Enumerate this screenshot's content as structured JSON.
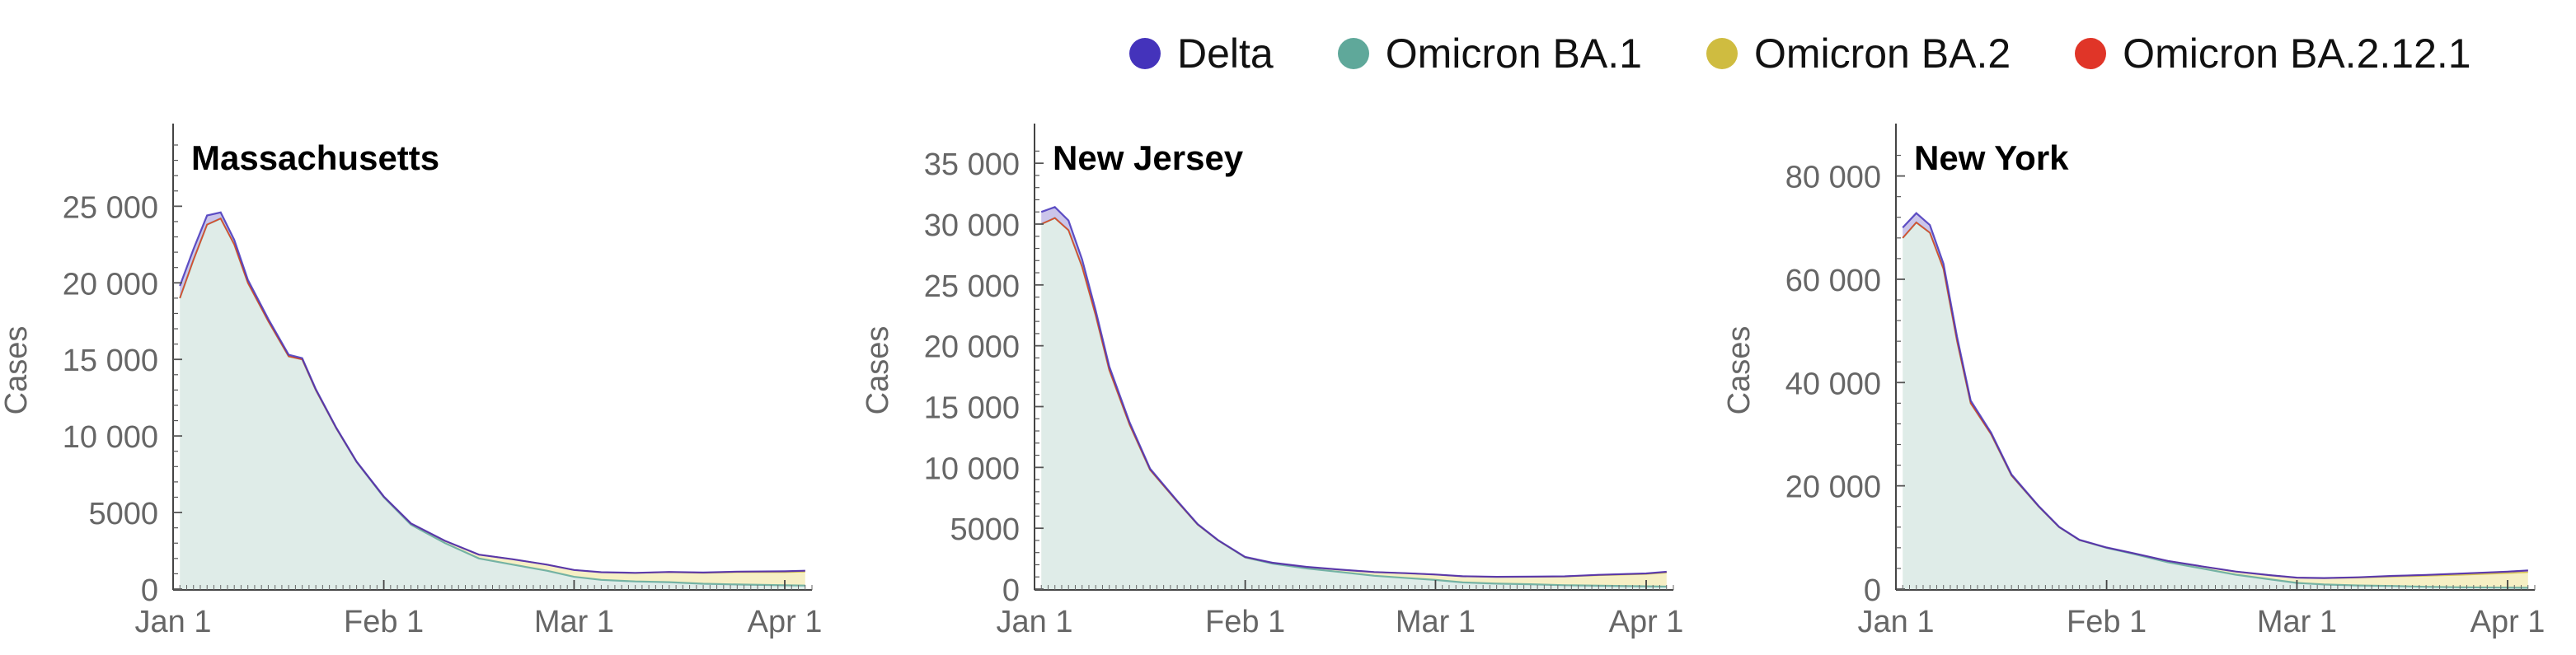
{
  "legend": {
    "items": [
      {
        "label": "Delta",
        "color": "#4433bb"
      },
      {
        "label": "Omicron BA.1",
        "color": "#5fa89a"
      },
      {
        "label": "Omicron BA.2",
        "color": "#cfbc40"
      },
      {
        "label": "Omicron BA.2.12.1",
        "color": "#e03528"
      }
    ]
  },
  "chart_data": [
    {
      "type": "area",
      "title": "Massachusetts",
      "ylabel": "Cases",
      "xlabel": "",
      "ylim": [
        0,
        29000
      ],
      "yticks": [
        0,
        5000,
        10000,
        15000,
        20000,
        25000
      ],
      "ytick_labels": [
        "0",
        "5000",
        "10 000",
        "15 000",
        "20 000",
        "25 000"
      ],
      "xlim": [
        "2022-01-01",
        "2022-04-05"
      ],
      "xticks": [
        "2022-01-01",
        "2022-02-01",
        "2022-03-01",
        "2022-04-01"
      ],
      "xtick_labels": [
        "Jan 1",
        "Feb 1",
        "Mar 1",
        "Apr 1"
      ],
      "stacked": true,
      "x": [
        "2022-01-02",
        "2022-01-04",
        "2022-01-06",
        "2022-01-08",
        "2022-01-10",
        "2022-01-12",
        "2022-01-15",
        "2022-01-18",
        "2022-01-20",
        "2022-01-22",
        "2022-01-25",
        "2022-01-28",
        "2022-02-01",
        "2022-02-05",
        "2022-02-10",
        "2022-02-15",
        "2022-02-20",
        "2022-02-25",
        "2022-03-01",
        "2022-03-05",
        "2022-03-10",
        "2022-03-15",
        "2022-03-20",
        "2022-03-25",
        "2022-04-01",
        "2022-04-04"
      ],
      "series": [
        {
          "name": "Omicron BA.1",
          "values": [
            19000,
            21500,
            23800,
            24200,
            22500,
            20000,
            17500,
            15200,
            15000,
            13000,
            10500,
            8300,
            6000,
            4200,
            3000,
            2000,
            1600,
            1200,
            800,
            600,
            500,
            450,
            350,
            300,
            250,
            230
          ]
        },
        {
          "name": "Omicron BA.2",
          "values": [
            0,
            0,
            0,
            0,
            0,
            0,
            0,
            0,
            0,
            0,
            0,
            0,
            30,
            80,
            150,
            250,
            350,
            400,
            450,
            500,
            550,
            650,
            700,
            800,
            850,
            900
          ]
        },
        {
          "name": "Omicron BA.2.12.1",
          "values": [
            0,
            0,
            0,
            0,
            0,
            0,
            0,
            0,
            0,
            0,
            0,
            0,
            0,
            0,
            0,
            0,
            0,
            0,
            0,
            5,
            10,
            20,
            30,
            40,
            60,
            70
          ]
        },
        {
          "name": "Delta",
          "values": [
            800,
            700,
            600,
            400,
            300,
            200,
            150,
            100,
            80,
            60,
            40,
            30,
            20,
            10,
            5,
            0,
            0,
            0,
            0,
            0,
            0,
            0,
            0,
            0,
            0,
            0
          ]
        }
      ]
    },
    {
      "type": "area",
      "title": "New Jersey",
      "ylabel": "Cases",
      "xlabel": "",
      "ylim": [
        0,
        36500
      ],
      "yticks": [
        0,
        5000,
        10000,
        15000,
        20000,
        25000,
        30000,
        35000
      ],
      "ytick_labels": [
        "0",
        "5000",
        "10 000",
        "15 000",
        "20 000",
        "25 000",
        "30 000",
        "35 000"
      ],
      "xlim": [
        "2022-01-01",
        "2022-04-05"
      ],
      "xticks": [
        "2022-01-01",
        "2022-02-01",
        "2022-03-01",
        "2022-04-01"
      ],
      "xtick_labels": [
        "Jan 1",
        "Feb 1",
        "Mar 1",
        "Apr 1"
      ],
      "stacked": true,
      "x": [
        "2022-01-02",
        "2022-01-04",
        "2022-01-06",
        "2022-01-08",
        "2022-01-10",
        "2022-01-12",
        "2022-01-15",
        "2022-01-18",
        "2022-01-20",
        "2022-01-22",
        "2022-01-25",
        "2022-01-28",
        "2022-02-01",
        "2022-02-05",
        "2022-02-10",
        "2022-02-15",
        "2022-02-20",
        "2022-02-25",
        "2022-03-01",
        "2022-03-05",
        "2022-03-10",
        "2022-03-15",
        "2022-03-20",
        "2022-03-25",
        "2022-04-01",
        "2022-04-04"
      ],
      "series": [
        {
          "name": "Omicron BA.1",
          "values": [
            30000,
            30500,
            29500,
            26500,
            22500,
            18000,
            13500,
            9800,
            8500,
            7200,
            5300,
            4000,
            2600,
            2100,
            1700,
            1400,
            1100,
            900,
            750,
            550,
            450,
            400,
            320,
            280,
            230,
            200
          ]
        },
        {
          "name": "Omicron BA.2",
          "values": [
            0,
            0,
            0,
            0,
            0,
            0,
            0,
            0,
            0,
            0,
            0,
            0,
            20,
            60,
            120,
            200,
            300,
            400,
            450,
            500,
            550,
            600,
            700,
            850,
            1000,
            1150
          ]
        },
        {
          "name": "Omicron BA.2.12.1",
          "values": [
            0,
            0,
            0,
            0,
            0,
            0,
            0,
            0,
            0,
            0,
            0,
            0,
            0,
            0,
            0,
            0,
            0,
            0,
            0,
            5,
            10,
            20,
            30,
            40,
            60,
            70
          ]
        },
        {
          "name": "Delta",
          "values": [
            1000,
            900,
            800,
            600,
            400,
            300,
            200,
            100,
            80,
            60,
            40,
            30,
            20,
            10,
            5,
            0,
            0,
            0,
            0,
            0,
            0,
            0,
            0,
            0,
            0,
            0
          ]
        }
      ]
    },
    {
      "type": "area",
      "title": "New York",
      "ylabel": "Cases",
      "xlabel": "",
      "ylim": [
        0,
        86000
      ],
      "yticks": [
        0,
        20000,
        40000,
        60000,
        80000
      ],
      "ytick_labels": [
        "0",
        "20 000",
        "40 000",
        "60 000",
        "80 000"
      ],
      "xlim": [
        "2022-01-01",
        "2022-04-05"
      ],
      "xticks": [
        "2022-01-01",
        "2022-02-01",
        "2022-03-01",
        "2022-04-01"
      ],
      "xtick_labels": [
        "Jan 1",
        "Feb 1",
        "Mar 1",
        "Apr 1"
      ],
      "stacked": true,
      "x": [
        "2022-01-02",
        "2022-01-04",
        "2022-01-06",
        "2022-01-08",
        "2022-01-10",
        "2022-01-12",
        "2022-01-15",
        "2022-01-18",
        "2022-01-20",
        "2022-01-22",
        "2022-01-25",
        "2022-01-28",
        "2022-02-01",
        "2022-02-05",
        "2022-02-10",
        "2022-02-15",
        "2022-02-20",
        "2022-02-25",
        "2022-03-01",
        "2022-03-05",
        "2022-03-10",
        "2022-03-15",
        "2022-03-20",
        "2022-03-25",
        "2022-04-01",
        "2022-04-04"
      ],
      "series": [
        {
          "name": "Omicron BA.1",
          "values": [
            68000,
            71000,
            69000,
            62000,
            48000,
            36000,
            30000,
            22000,
            19000,
            16000,
            12000,
            9500,
            8000,
            6800,
            5200,
            4000,
            2800,
            1900,
            1200,
            900,
            700,
            600,
            450,
            350,
            280,
            250
          ]
        },
        {
          "name": "Omicron BA.2",
          "values": [
            0,
            0,
            0,
            0,
            0,
            0,
            0,
            0,
            0,
            0,
            0,
            0,
            40,
            120,
            250,
            400,
            600,
            800,
            1000,
            1200,
            1500,
            1800,
            2100,
            2400,
            2800,
            3000
          ]
        },
        {
          "name": "Omicron BA.2.12.1",
          "values": [
            0,
            0,
            0,
            0,
            0,
            0,
            0,
            0,
            0,
            0,
            0,
            0,
            0,
            0,
            0,
            0,
            0,
            0,
            20,
            40,
            80,
            150,
            200,
            250,
            300,
            350
          ]
        },
        {
          "name": "Delta",
          "values": [
            2000,
            1800,
            1500,
            1000,
            800,
            500,
            300,
            200,
            150,
            100,
            60,
            40,
            20,
            10,
            5,
            0,
            0,
            0,
            0,
            0,
            0,
            0,
            0,
            0,
            0,
            0
          ]
        }
      ]
    }
  ]
}
